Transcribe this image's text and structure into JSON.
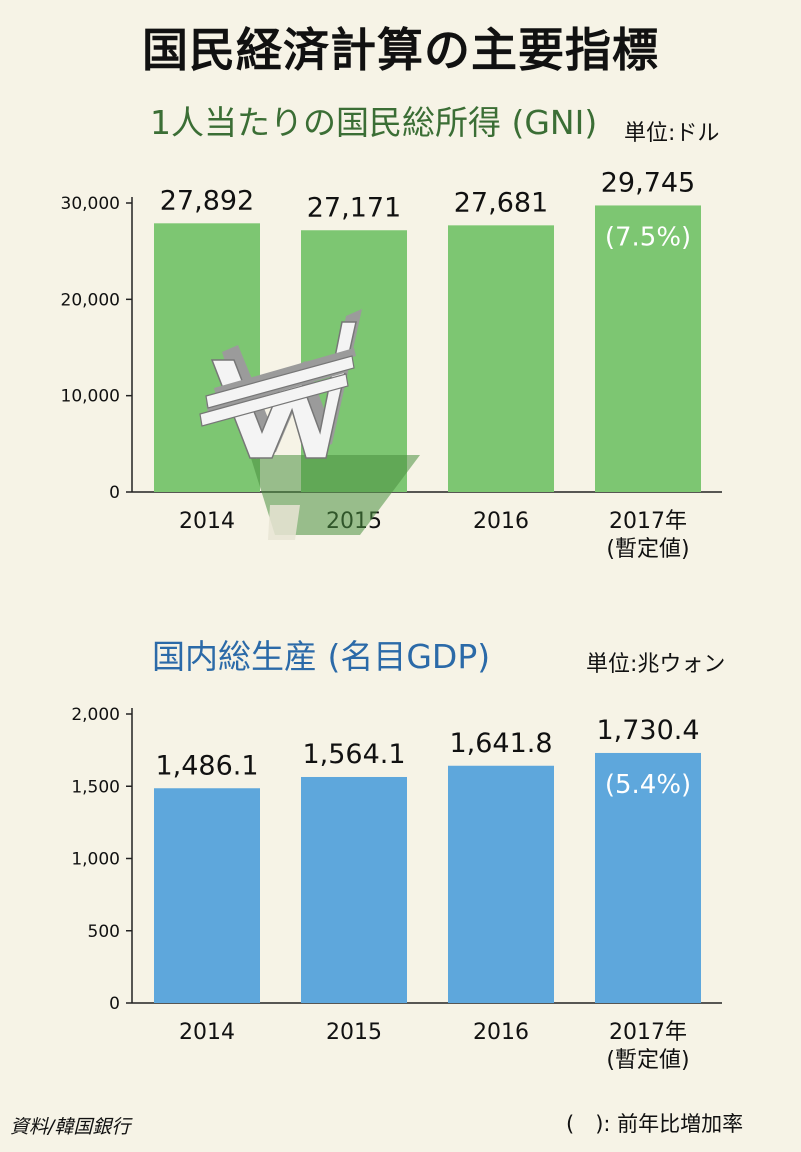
{
  "header": {
    "title": "国民経済計算の主要指標"
  },
  "gni": {
    "title": "1人当たりの国民総所得 (GNI)",
    "unit": "単位:ドル"
  },
  "gdp": {
    "title": "国内総生産 (名目GDP)",
    "unit": "単位:兆ウォン"
  },
  "footer": {
    "source": "資料/韓国銀行",
    "note": "(　): 前年比増加率"
  },
  "colors": {
    "gni_bar": "#7dc672",
    "gdp_bar": "#5ea7dc",
    "background": "#f6f3e6"
  },
  "icons": [
    "won-sign-3d-icon"
  ],
  "chart_data": [
    {
      "type": "bar",
      "title": "1人当たりの国民総所得 (GNI)",
      "categories": [
        "2014",
        "2015",
        "2016",
        "2017年\n(暫定値)"
      ],
      "values": [
        27892,
        27171,
        27681,
        29745
      ],
      "value_labels": [
        "27,892",
        "27,171",
        "27,681",
        "29,745"
      ],
      "growth_label": "(7.5%)",
      "ylim": [
        0,
        30000
      ],
      "yticks": [
        0,
        10000,
        20000,
        30000
      ],
      "ytick_labels": [
        "0",
        "10,000",
        "20,000",
        "30,000"
      ],
      "grid": false
    },
    {
      "type": "bar",
      "title": "国内総生産 (名目GDP)",
      "categories": [
        "2014",
        "2015",
        "2016",
        "2017年\n(暫定値)"
      ],
      "values": [
        1486.1,
        1564.1,
        1641.8,
        1730.4
      ],
      "value_labels": [
        "1,486.1",
        "1,564.1",
        "1,641.8",
        "1,730.4"
      ],
      "growth_label": "(5.4%)",
      "ylim": [
        0,
        2000
      ],
      "yticks": [
        0,
        500,
        1000,
        1500,
        2000
      ],
      "ytick_labels": [
        "0",
        "500",
        "1,000",
        "1,500",
        "2,000"
      ],
      "grid": false
    }
  ]
}
